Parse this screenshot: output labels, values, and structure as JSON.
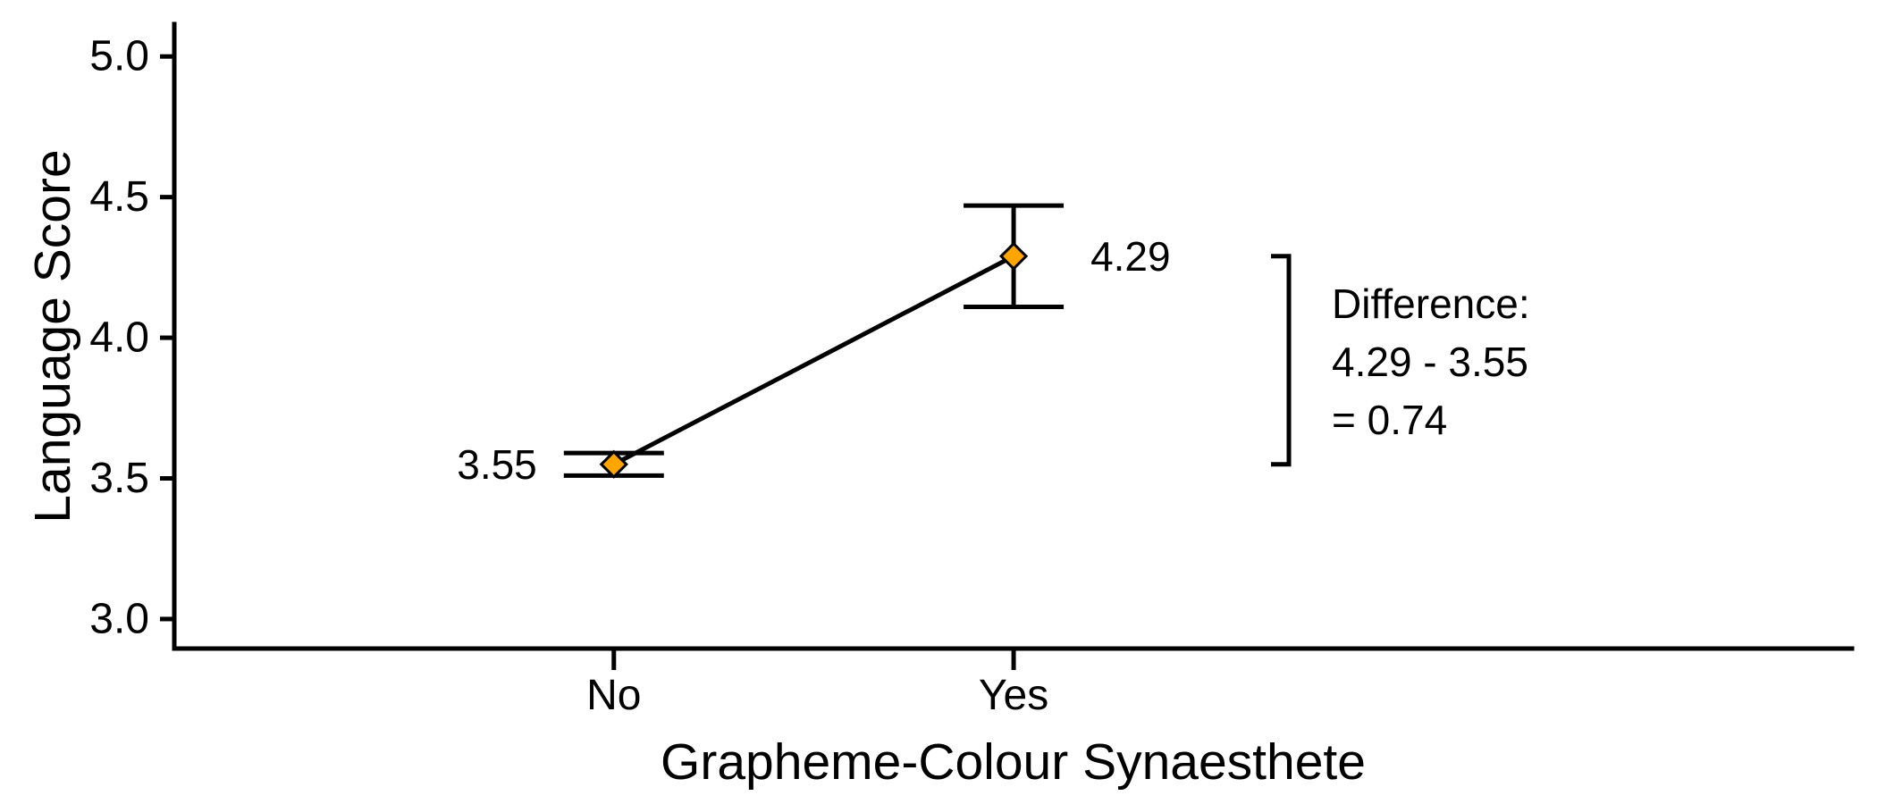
{
  "chart_data": {
    "type": "line",
    "title": "",
    "xlabel": "Grapheme-Colour Synaesthete",
    "ylabel": "Language Score",
    "categories": [
      "No",
      "Yes"
    ],
    "values": [
      3.55,
      4.29
    ],
    "error_low": [
      3.51,
      4.11
    ],
    "error_high": [
      3.59,
      4.47
    ],
    "point_labels": [
      "3.55",
      "4.29"
    ],
    "yticks": [
      3.0,
      3.5,
      4.0,
      4.5,
      5.0
    ],
    "ytick_labels": [
      "3.0",
      "3.5",
      "4.0",
      "4.5",
      "5.0"
    ],
    "ylim": [
      2.895,
      5.115
    ],
    "grid": false,
    "legend": false,
    "marker": "diamond",
    "colors": {
      "marker_fill": "#FFA500",
      "marker_stroke": "#000000",
      "line": "#000000",
      "axis": "#000000",
      "text": "#000000",
      "background": "#ffffff"
    },
    "annotation": {
      "lines": [
        "Difference:",
        "4.29 - 3.55",
        "= 0.74"
      ],
      "bracket_from_value": 4.29,
      "bracket_to_value": 3.55
    }
  }
}
